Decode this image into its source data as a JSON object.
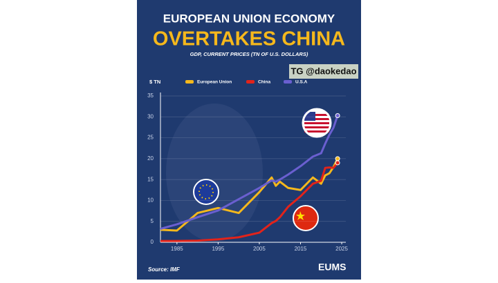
{
  "chart_data": {
    "type": "line",
    "title": "EUROPEAN UNION ECONOMY",
    "subtitle": "OVERTAKES CHINA",
    "caption": "GDP, CURRENT PRICES (TN OF U.S. DOLLARS)",
    "watermark": "TG @daokedao",
    "ylabel": "$ TN",
    "source": "Source: IMF",
    "logo": "EUMS",
    "x": [
      1981,
      1985,
      1990,
      1995,
      2000,
      2005,
      2008,
      2009,
      2010,
      2012,
      2015,
      2018,
      2020,
      2021,
      2022,
      2023,
      2024
    ],
    "series": [
      {
        "name": "European Union",
        "color": "#f5b81c",
        "values": [
          3,
          2.8,
          7,
          8.2,
          7,
          12,
          15.5,
          13.5,
          14.5,
          13,
          12.5,
          15.5,
          14,
          16,
          16.5,
          18,
          20
        ]
      },
      {
        "name": "China",
        "color": "#e2231a",
        "values": [
          0.3,
          0.3,
          0.4,
          0.7,
          1.2,
          2.3,
          4.6,
          5.1,
          6,
          8.5,
          11,
          14,
          14.7,
          17.8,
          17.9,
          17.8,
          19
        ]
      },
      {
        "name": "U.S.A",
        "color": "#6a5fd0",
        "values": [
          3.2,
          4.3,
          6,
          7.6,
          10.3,
          13,
          14.8,
          14.5,
          15,
          16.2,
          18.2,
          20.5,
          21.3,
          23.6,
          25.7,
          27.4,
          30.3
        ]
      }
    ],
    "xlim": [
      1981,
      2026
    ],
    "xticks": [
      1985,
      1995,
      2005,
      2015,
      2025
    ],
    "ylim": [
      0,
      35
    ],
    "yticks": [
      0,
      5,
      10,
      15,
      20,
      25,
      30,
      35
    ],
    "grid": true
  }
}
